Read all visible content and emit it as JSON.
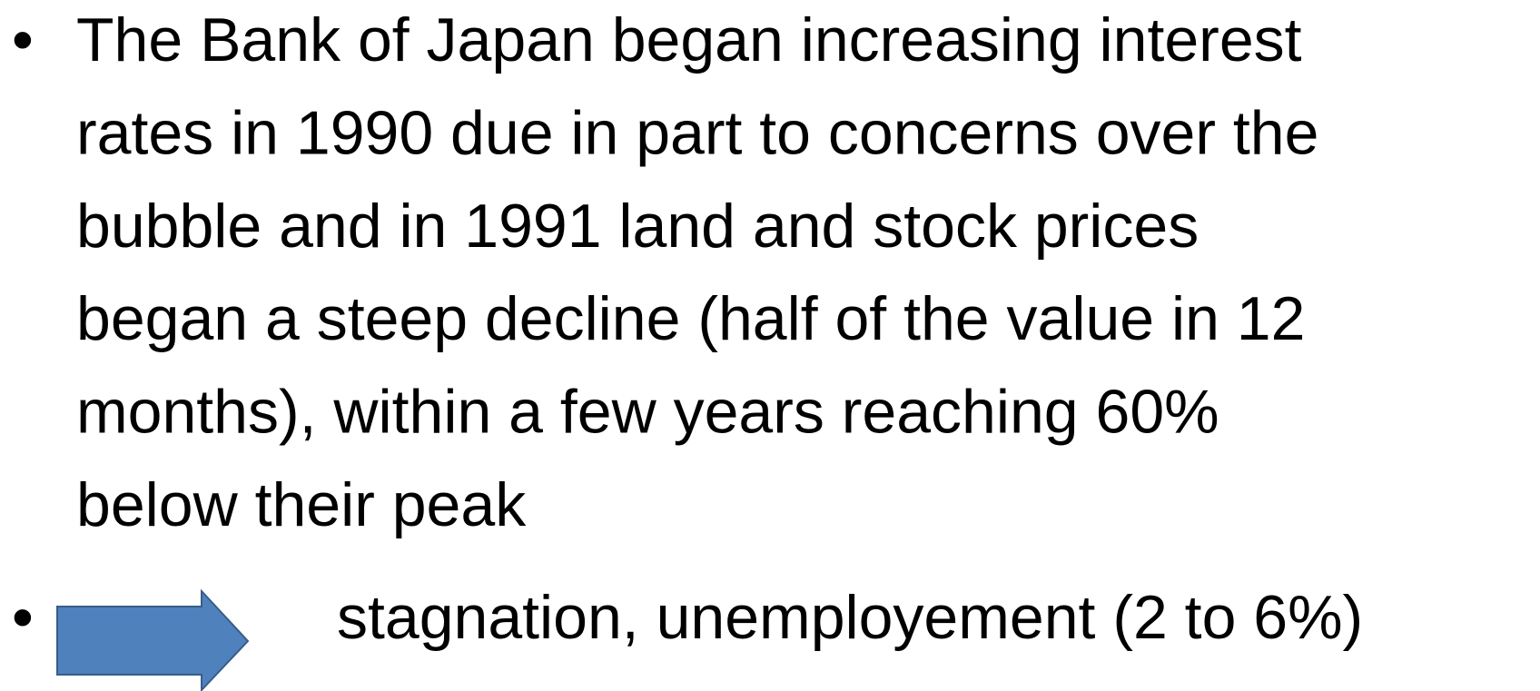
{
  "bullets": [
    {
      "lines": [
        "The Bank of Japan began increasing interest",
        "rates in 1990 due in part to concerns over the",
        "bubble and in 1991 land and stock prices",
        "began a steep decline (half of the value in 12",
        "months), within a few years reaching 60%",
        "below their peak"
      ]
    },
    {
      "text": "stagnation, unemployement (2 to 6%)"
    }
  ]
}
